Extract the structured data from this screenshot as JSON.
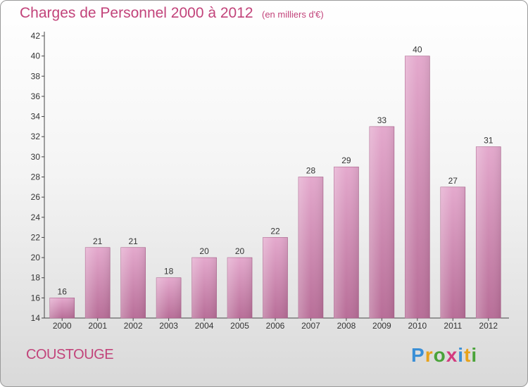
{
  "header": {
    "title": "Charges de Personnel 2000 à 2012",
    "subtitle": "(en milliers d'€)"
  },
  "footer": {
    "place": "COUSTOUGE",
    "logo": "Proxiti"
  },
  "colors": {
    "bar": "#c77aa6",
    "bar_light": "#e2a7cb",
    "title": "#c2437a"
  },
  "chart_data": {
    "type": "bar",
    "title": "Charges de Personnel 2000 à 2012",
    "subtitle": "(en milliers d'€)",
    "categories": [
      "2000",
      "2001",
      "2002",
      "2003",
      "2004",
      "2005",
      "2006",
      "2007",
      "2008",
      "2009",
      "2010",
      "2011",
      "2012"
    ],
    "values": [
      16,
      21,
      21,
      18,
      20,
      20,
      22,
      28,
      29,
      33,
      40,
      27,
      31
    ],
    "ylim": [
      14,
      42
    ],
    "yticks": [
      14,
      16,
      18,
      20,
      22,
      24,
      26,
      28,
      30,
      32,
      34,
      36,
      38,
      40,
      42
    ],
    "grid": false,
    "legend": "none"
  }
}
